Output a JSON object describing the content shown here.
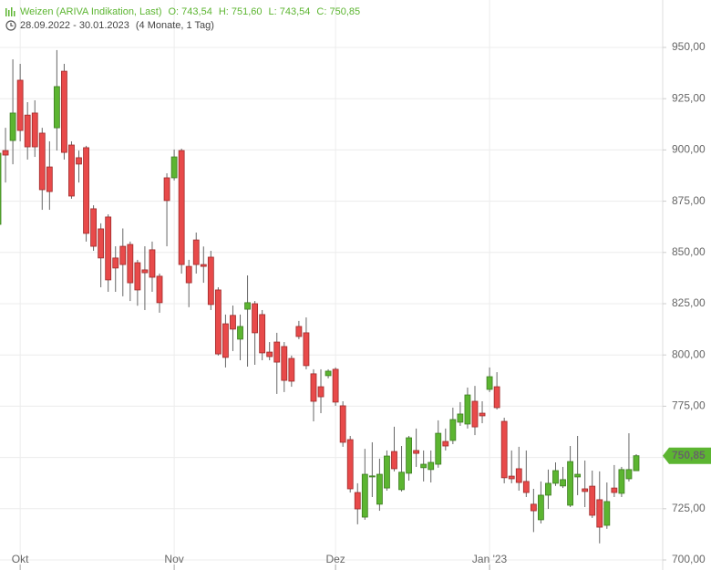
{
  "header": {
    "title": "Weizen (ARIVA Indikation, Last)",
    "quote": [
      "O: 743,54",
      "H: 751,60",
      "L: 743,54",
      "C: 750,85"
    ],
    "range": "28.09.2022 - 30.01.2023",
    "duration": "(4 Monate, 1 Tag)"
  },
  "chart_data": {
    "type": "candlestick",
    "categories": [
      null,
      null,
      null,
      "Okt",
      null,
      null,
      null,
      null,
      null,
      null,
      null,
      null,
      null,
      null,
      null,
      null,
      null,
      null,
      null,
      null,
      null,
      null,
      null,
      null,
      "Nov",
      null,
      null,
      null,
      null,
      null,
      null,
      null,
      null,
      null,
      null,
      null,
      null,
      null,
      null,
      null,
      null,
      null,
      null,
      null,
      null,
      null,
      "Dez",
      null,
      null,
      null,
      null,
      null,
      null,
      null,
      null,
      null,
      null,
      null,
      null,
      null,
      null,
      null,
      null,
      null,
      null,
      null,
      null,
      "Jan '23",
      null,
      null,
      null,
      null,
      null,
      null,
      null,
      null,
      null,
      null,
      null,
      null,
      null,
      null,
      null,
      null,
      null,
      null,
      null,
      null
    ],
    "open": [
      863.7,
      899.7,
      904.6,
      934,
      917,
      918,
      908.2,
      891.7,
      910.8,
      938.4,
      902.4,
      896.2,
      901.1,
      871.3,
      861.5,
      867.3,
      847.3,
      853,
      853.9,
      845,
      841.5,
      851.3,
      838.4,
      886.4,
      886.4,
      899.7,
      843.2,
      856.1,
      844.1,
      847.7,
      831.7,
      815.2,
      819.3,
      807.7,
      822.3,
      825,
      819.7,
      801.4,
      806.3,
      804.1,
      798.3,
      813.9,
      810.8,
      790.8,
      784.5,
      789.9,
      793,
      775.2,
      758.7,
      732.9,
      720.9,
      740.5,
      727.2,
      735.1,
      752.9,
      734.3,
      742.3,
      753.4,
      745,
      744.1,
      746.7,
      757.8,
      758.3,
      767.2,
      766.3,
      777.4,
      771.6,
      783.2,
      784.5,
      767.6,
      740.9,
      744.5,
      738.3,
      727.2,
      719.6,
      731.6,
      737.4,
      736.1,
      726.7,
      740.5,
      734.7,
      736,
      729.4,
      716.9,
      735.1,
      732.5,
      739.6,
      743.54
    ],
    "high": [
      900,
      910.8,
      944.2,
      942,
      923.3,
      924.2,
      910.8,
      904.2,
      948.7,
      942,
      904.2,
      899.7,
      902,
      873,
      864.2,
      868.6,
      853,
      861.7,
      855.3,
      846.4,
      853,
      855.3,
      839.7,
      888.6,
      900.2,
      900.6,
      846.4,
      859.7,
      852.9,
      850.8,
      833,
      819.7,
      824.1,
      819.7,
      838.8,
      826.3,
      821.9,
      806.3,
      810.8,
      806.3,
      799.7,
      816.6,
      818.3,
      793,
      793,
      793,
      793.9,
      777.4,
      760.5,
      737.4,
      754.2,
      757.4,
      749.4,
      753.4,
      765,
      755.6,
      760.5,
      764.1,
      753.4,
      753.4,
      768.1,
      764.1,
      774.3,
      777,
      784.1,
      784.9,
      777.4,
      793.9,
      791.6,
      769.4,
      753.4,
      755.2,
      753.4,
      734.7,
      738.3,
      744.1,
      747.6,
      745.4,
      755.6,
      760.5,
      748.5,
      743.6,
      743.2,
      737.8,
      746.3,
      745.4,
      761.8,
      751.6
    ],
    "low": [
      860,
      884.1,
      893,
      904.2,
      895.3,
      896.6,
      870.8,
      870.8,
      899.7,
      895.3,
      876.2,
      884.1,
      855.3,
      850.8,
      833,
      830.8,
      830.8,
      828.6,
      826.3,
      824,
      821.9,
      830.8,
      820.6,
      853,
      885.1,
      839.7,
      823.3,
      839.7,
      835.2,
      821.9,
      799.7,
      793.9,
      801.9,
      797.4,
      794.3,
      795.2,
      797.4,
      797.4,
      781,
      781.9,
      784.5,
      807.7,
      793,
      767.6,
      771.6,
      788.6,
      775.2,
      755.2,
      732.9,
      717.4,
      719.6,
      730.7,
      724,
      733.8,
      743.2,
      733.4,
      738.7,
      745.4,
      738.3,
      737.8,
      745,
      753.4,
      756.5,
      765.4,
      764.1,
      760.9,
      766.7,
      781.9,
      773.4,
      737.4,
      737.4,
      733.8,
      730.7,
      713.6,
      717.8,
      724.9,
      736.1,
      735.1,
      725.8,
      731.6,
      725.8,
      720.5,
      708.1,
      715.2,
      730.7,
      730.7,
      738.3,
      743.54
    ],
    "close": [
      898.4,
      897.5,
      918,
      909.5,
      901.5,
      901.5,
      880.6,
      879.7,
      930.9,
      898.8,
      877.5,
      893.1,
      859.3,
      853,
      847.3,
      836.6,
      842.4,
      844.1,
      835.2,
      831.7,
      840.1,
      837.9,
      825.5,
      875.3,
      896.6,
      844.1,
      835.2,
      844.1,
      843.2,
      824.6,
      800.5,
      798.8,
      812.6,
      813.9,
      825.5,
      810.8,
      801,
      799.2,
      796.5,
      787.6,
      787.2,
      809,
      794.8,
      777.4,
      779.6,
      792.1,
      777,
      757.4,
      734.7,
      724.9,
      741.8,
      741,
      741.8,
      750.7,
      744.5,
      742.8,
      759.6,
      752,
      746.7,
      747.6,
      761.8,
      755.6,
      768.5,
      771.2,
      780.5,
      764.9,
      770.3,
      789.4,
      774.3,
      740.1,
      739.6,
      737.8,
      732.9,
      724,
      731.6,
      737.4,
      743.6,
      739.2,
      748,
      741.8,
      733.4,
      721.8,
      716,
      728.5,
      732.9,
      744.1,
      744.1,
      750.85
    ],
    "up_color": "#5cb531",
    "down_color": "#e84a4a",
    "ylim": [
      700,
      950
    ],
    "yticks": [
      {
        "value": 700,
        "label": "700,00"
      },
      {
        "value": 725,
        "label": "725,00"
      },
      {
        "value": 750,
        "label": "750,00"
      },
      {
        "value": 775,
        "label": "775,00"
      },
      {
        "value": 800,
        "label": "800,00"
      },
      {
        "value": 825,
        "label": "825,00"
      },
      {
        "value": 850,
        "label": "850,00"
      },
      {
        "value": 875,
        "label": "875,00"
      },
      {
        "value": 900,
        "label": "900,00"
      },
      {
        "value": 925,
        "label": "925,00"
      },
      {
        "value": 950,
        "label": "950,00"
      }
    ],
    "last_price": {
      "value": 750.85,
      "label": "750,85"
    },
    "grid": true
  }
}
